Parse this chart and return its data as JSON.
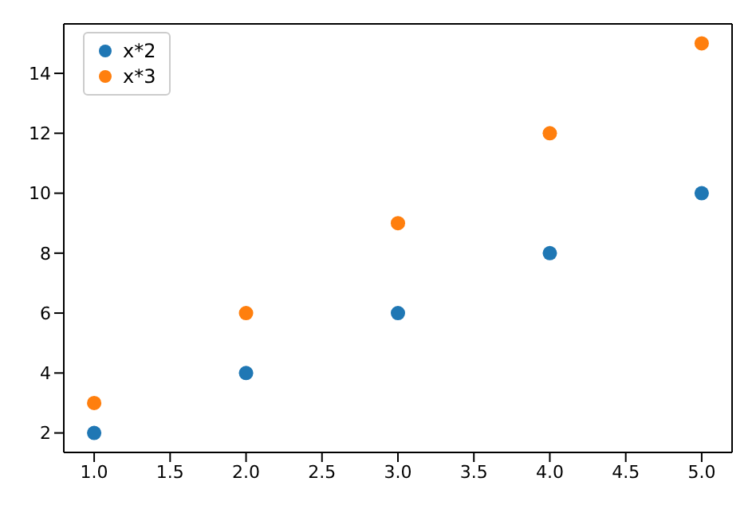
{
  "chart_data": {
    "type": "scatter",
    "x": [
      1,
      2,
      3,
      4,
      5
    ],
    "series": [
      {
        "name": "x*2",
        "color": "#1f77b4",
        "values": [
          2,
          4,
          6,
          8,
          10
        ]
      },
      {
        "name": "x*3",
        "color": "#ff7f0e",
        "values": [
          3,
          6,
          9,
          12,
          15
        ]
      }
    ],
    "xlim": [
      0.8,
      5.2
    ],
    "ylim": [
      1.35,
      15.65
    ],
    "xticks": [
      {
        "value": 1,
        "label": "1.0"
      },
      {
        "value": 1.5,
        "label": "1.5"
      },
      {
        "value": 2,
        "label": "2.0"
      },
      {
        "value": 2.5,
        "label": "2.5"
      },
      {
        "value": 3,
        "label": "3.0"
      },
      {
        "value": 3.5,
        "label": "3.5"
      },
      {
        "value": 4,
        "label": "4.0"
      },
      {
        "value": 4.5,
        "label": "4.5"
      },
      {
        "value": 5,
        "label": "5.0"
      }
    ],
    "yticks": [
      2,
      4,
      6,
      8,
      10,
      12,
      14
    ],
    "grid": false,
    "legend": "top left",
    "marker": "circle"
  }
}
